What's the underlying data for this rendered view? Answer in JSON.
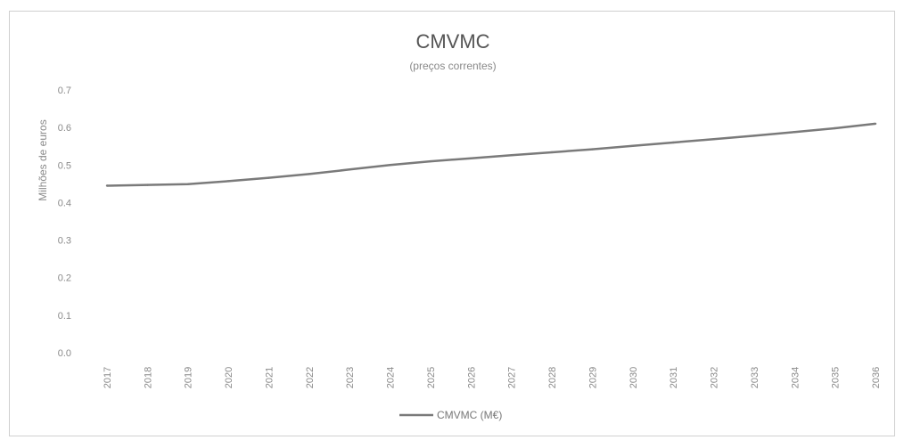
{
  "chart_data": {
    "type": "line",
    "title": "CMVMC",
    "subtitle": "(preços correntes)",
    "xlabel": "",
    "ylabel": "Milhões de euros",
    "x": [
      "2017",
      "2018",
      "2019",
      "2020",
      "2021",
      "2022",
      "2023",
      "2024",
      "2025",
      "2026",
      "2027",
      "2028",
      "2029",
      "2030",
      "2031",
      "2032",
      "2033",
      "2034",
      "2035",
      "2036"
    ],
    "ylim": [
      0,
      0.7
    ],
    "yticks": [
      "0.0",
      "0.1",
      "0.2",
      "0.3",
      "0.4",
      "0.5",
      "0.6",
      "0.7"
    ],
    "grid": false,
    "legend_position": "bottom",
    "series": [
      {
        "name": "CMVMC (M€)",
        "color": "#7a7a7a",
        "values": [
          0.445,
          0.447,
          0.449,
          0.457,
          0.466,
          0.476,
          0.488,
          0.5,
          0.51,
          0.518,
          0.526,
          0.534,
          0.542,
          0.551,
          0.56,
          0.569,
          0.578,
          0.588,
          0.598,
          0.61
        ]
      }
    ]
  }
}
